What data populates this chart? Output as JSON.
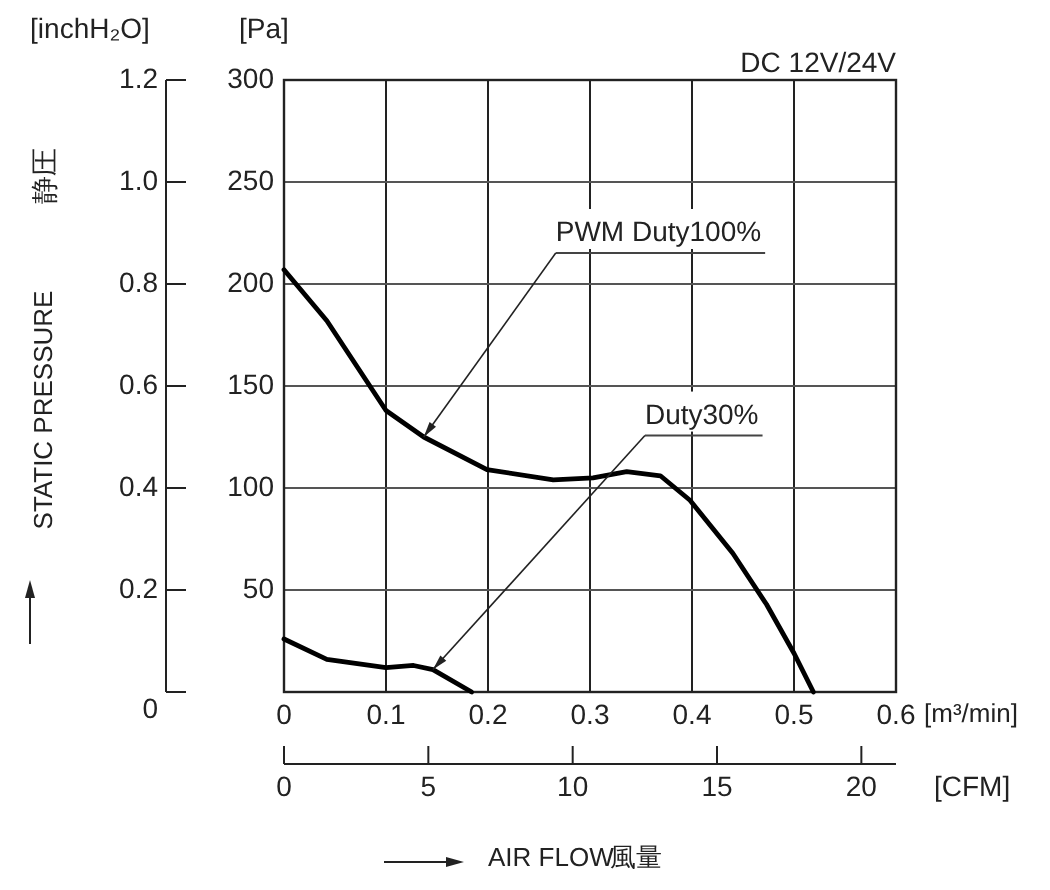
{
  "chart_data": {
    "type": "line",
    "xlabel": "[m³/min]",
    "ylabel": "[Pa]",
    "y2label": "[inchH₂O]",
    "x2label": "[CFM]",
    "x": [
      0,
      0.042,
      0.1,
      0.137,
      0.199,
      0.264,
      0.303,
      0.336,
      0.369,
      0.398,
      0.44,
      0.473,
      0.5,
      0.519
    ],
    "series": [
      {
        "color": "#000000",
        "values": [
          207,
          182,
          138,
          125,
          109,
          104,
          105,
          108,
          106,
          94,
          68,
          43,
          19,
          0
        ]
      },
      {
        "color": "#000000",
        "x": [
          0,
          0.042,
          0.1,
          0.127,
          0.146,
          0.184
        ],
        "values": [
          26,
          16,
          12,
          13,
          11,
          0
        ]
      }
    ],
    "xlim": [
      0,
      0.6
    ],
    "xticks": [
      0,
      0.1,
      0.2,
      0.3,
      0.4,
      0.5,
      0.6
    ],
    "ylim": [
      0,
      300
    ],
    "yticks": [
      {
        "value": 0,
        "label": null
      },
      50,
      100,
      150,
      200,
      250,
      300
    ],
    "y2lim": [
      0,
      1.2
    ],
    "y2ticks": [
      0,
      {
        "value": 0.2,
        "label": "0.2"
      },
      {
        "value": 0.4,
        "label": "0.4"
      },
      {
        "value": 0.6,
        "label": "0.6"
      },
      {
        "value": 0.8,
        "label": "0.8"
      },
      {
        "value": 1.0,
        "label": "1.0"
      },
      {
        "value": 1.2,
        "label": "1.2"
      }
    ],
    "x2lim": [
      0,
      21.2
    ],
    "x2ticks": [
      0,
      5,
      10,
      15,
      20
    ],
    "grid": true,
    "marker": "none",
    "line_style": "solid",
    "annotations": [
      {
        "text": "PWM Duty100%",
        "x": 0.137,
        "y": 125
      },
      {
        "text": "Duty30%",
        "x": 0.146,
        "y": 11
      },
      "DC 12V/24V",
      "STATIC PRESSURE",
      "静圧",
      "AIR FLOW",
      "風量"
    ]
  }
}
